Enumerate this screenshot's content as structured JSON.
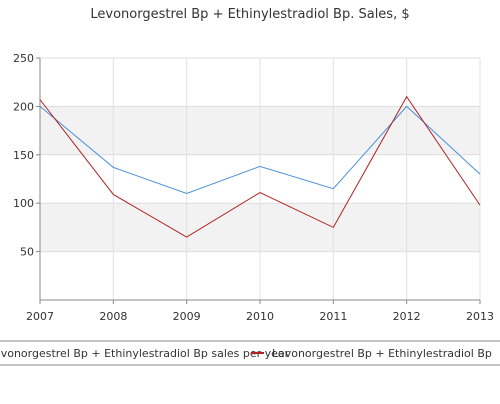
{
  "chart_data": {
    "type": "line",
    "title": "Levonorgestrel Bp + Ethinylestradiol Bp. Sales, $",
    "xlabel": "",
    "ylabel": "",
    "categories": [
      "2007",
      "2008",
      "2009",
      "2010",
      "2011",
      "2012",
      "2013"
    ],
    "ylim": [
      0,
      250
    ],
    "yticks": [
      50,
      100,
      150,
      200,
      250
    ],
    "grid": true,
    "legend_position": "bottom",
    "series": [
      {
        "name": "Levonorgestrel Bp + Ethinylestradiol Bp sales per year",
        "color": "#4a90d9",
        "values": [
          200,
          137,
          110,
          138,
          115,
          200,
          130
        ]
      },
      {
        "name": "Levonorgestrel Bp + Ethinylestradiol Bp",
        "color": "#b22222",
        "values": [
          207,
          109,
          65,
          111,
          75,
          210,
          98
        ]
      }
    ]
  }
}
